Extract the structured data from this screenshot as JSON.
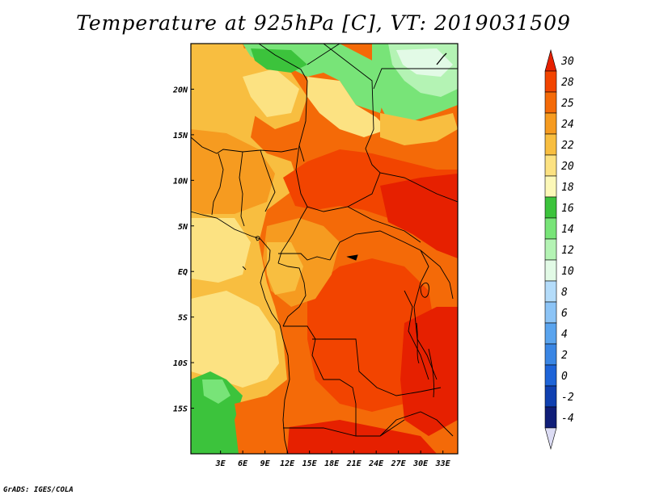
{
  "title": "Temperature at 925hPa [C], VT: 2019031509",
  "credit": "GrADS: IGES/COLA",
  "map": {
    "lon_range": [
      -1,
      35
    ],
    "lat_range": [
      -20,
      25
    ],
    "lon_ticks": [
      {
        "value": 3,
        "label": "3E"
      },
      {
        "value": 6,
        "label": "6E"
      },
      {
        "value": 9,
        "label": "9E"
      },
      {
        "value": 12,
        "label": "12E"
      },
      {
        "value": 15,
        "label": "15E"
      },
      {
        "value": 18,
        "label": "18E"
      },
      {
        "value": 21,
        "label": "21E"
      },
      {
        "value": 24,
        "label": "24E"
      },
      {
        "value": 27,
        "label": "27E"
      },
      {
        "value": 30,
        "label": "30E"
      },
      {
        "value": 33,
        "label": "33E"
      }
    ],
    "lat_ticks": [
      {
        "value": 20,
        "label": "20N"
      },
      {
        "value": 15,
        "label": "15N"
      },
      {
        "value": 10,
        "label": "10N"
      },
      {
        "value": 5,
        "label": "5N"
      },
      {
        "value": 0,
        "label": "EQ"
      },
      {
        "value": -5,
        "label": "5S"
      },
      {
        "value": -10,
        "label": "10S"
      },
      {
        "value": -15,
        "label": "15S"
      }
    ]
  },
  "colorbar": {
    "labels": [
      "30",
      "28",
      "25",
      "24",
      "22",
      "20",
      "18",
      "16",
      "14",
      "12",
      "10",
      "8",
      "6",
      "4",
      "2",
      "0",
      "-2",
      "-4"
    ],
    "colors": [
      "#e62000",
      "#f24400",
      "#f46a08",
      "#f69b20",
      "#f8be40",
      "#fce282",
      "#fcf8b8",
      "#3cc33c",
      "#78e478",
      "#b4f3b4",
      "#e2fae6",
      "#b4dcfa",
      "#8cc4f6",
      "#5aa4ee",
      "#3a86e4",
      "#1e64d8",
      "#1040b0",
      "#101e78",
      "#dcdcf4"
    ]
  }
}
